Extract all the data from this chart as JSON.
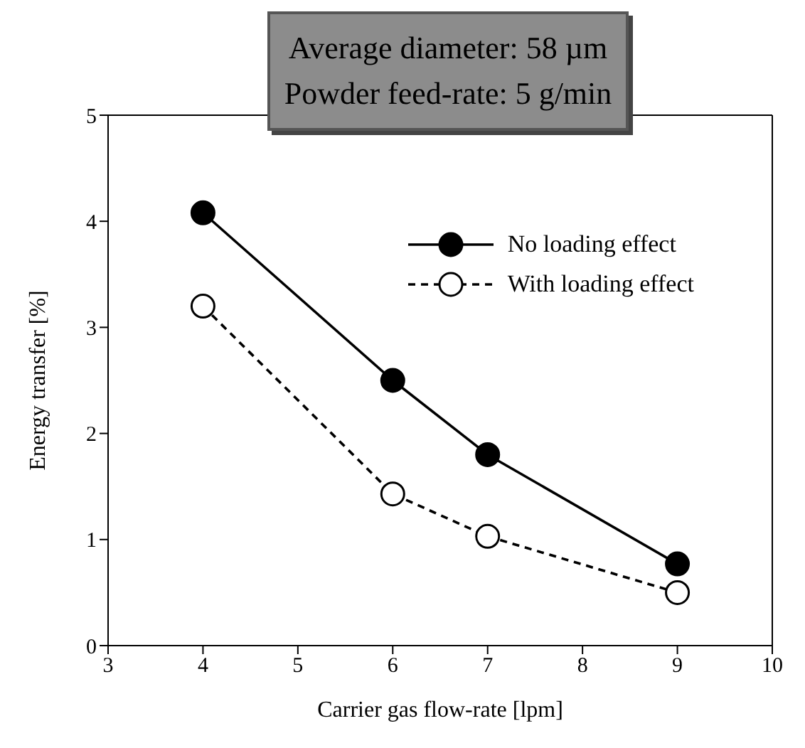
{
  "chart_data": {
    "type": "line",
    "xlabel": "Carrier gas flow-rate [lpm]",
    "ylabel": "Energy transfer [%]",
    "annotations": [
      "Average diameter: 58 µm",
      "Powder feed-rate: 5 g/min"
    ],
    "x": [
      4,
      6,
      7,
      9
    ],
    "series": [
      {
        "name": "No loading effect",
        "color": "#000000",
        "values": [
          4.08,
          2.5,
          1.8,
          0.77
        ],
        "line_style": "solid"
      },
      {
        "name": "With loading effect",
        "color": "#000000",
        "values": [
          3.2,
          1.43,
          1.03,
          0.5
        ],
        "line_style": "dashed"
      }
    ],
    "xlim": [
      3,
      10
    ],
    "xticks": [
      3,
      4,
      5,
      6,
      7,
      8,
      9,
      10
    ],
    "ylim": [
      0,
      5
    ],
    "yticks": [
      0,
      1,
      2,
      3,
      4,
      5
    ],
    "marker": "circle",
    "legend": "top right",
    "grid": false
  }
}
